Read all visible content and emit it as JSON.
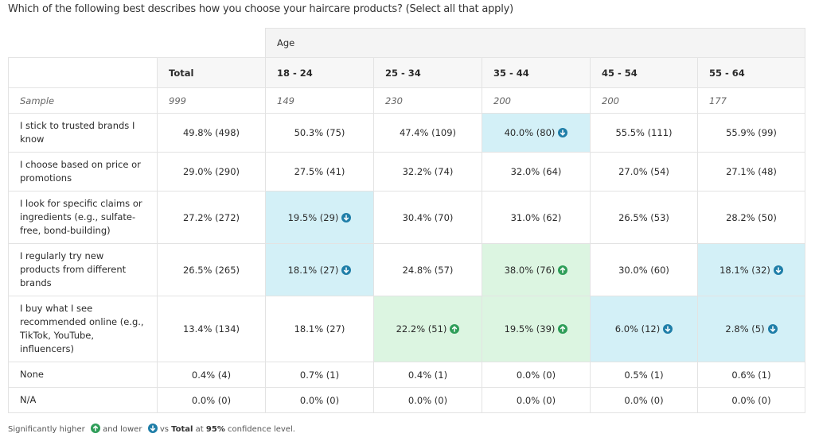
{
  "title": "Which of the following best describes how you choose your haircare products? (Select all that apply)",
  "table": {
    "group_header": "Age",
    "columns": [
      "Total",
      "18 - 24",
      "25 - 34",
      "35 - 44",
      "45 - 54",
      "55 - 64"
    ],
    "sample_label": "Sample",
    "sample": [
      999,
      149,
      230,
      200,
      200,
      177
    ],
    "rows": [
      {
        "label": "I stick to trusted brands I know",
        "cells": [
          {
            "text": "49.8% (498)"
          },
          {
            "text": "50.3% (75)"
          },
          {
            "text": "47.4% (109)"
          },
          {
            "text": "40.0% (80)",
            "sig": "down"
          },
          {
            "text": "55.5% (111)"
          },
          {
            "text": "55.9% (99)"
          }
        ]
      },
      {
        "label": "I choose based on price or promotions",
        "cells": [
          {
            "text": "29.0% (290)"
          },
          {
            "text": "27.5% (41)"
          },
          {
            "text": "32.2% (74)"
          },
          {
            "text": "32.0% (64)"
          },
          {
            "text": "27.0% (54)"
          },
          {
            "text": "27.1% (48)"
          }
        ]
      },
      {
        "label": "I look for specific claims or ingredients (e.g., sulfate-free, bond-building)",
        "cells": [
          {
            "text": "27.2% (272)"
          },
          {
            "text": "19.5% (29)",
            "sig": "down"
          },
          {
            "text": "30.4% (70)"
          },
          {
            "text": "31.0% (62)"
          },
          {
            "text": "26.5% (53)"
          },
          {
            "text": "28.2% (50)"
          }
        ]
      },
      {
        "label": "I regularly try new products from different brands",
        "cells": [
          {
            "text": "26.5% (265)"
          },
          {
            "text": "18.1% (27)",
            "sig": "down"
          },
          {
            "text": "24.8% (57)"
          },
          {
            "text": "38.0% (76)",
            "sig": "up"
          },
          {
            "text": "30.0% (60)"
          },
          {
            "text": "18.1% (32)",
            "sig": "down"
          }
        ]
      },
      {
        "label": "I buy what I see recommended online (e.g., TikTok, YouTube, influencers)",
        "cells": [
          {
            "text": "13.4% (134)"
          },
          {
            "text": "18.1% (27)"
          },
          {
            "text": "22.2% (51)",
            "sig": "up"
          },
          {
            "text": "19.5% (39)",
            "sig": "up"
          },
          {
            "text": "6.0% (12)",
            "sig": "down"
          },
          {
            "text": "2.8% (5)",
            "sig": "down"
          }
        ]
      },
      {
        "label": "None",
        "cells": [
          {
            "text": "0.4% (4)"
          },
          {
            "text": "0.7% (1)"
          },
          {
            "text": "0.4% (1)"
          },
          {
            "text": "0.0% (0)"
          },
          {
            "text": "0.5% (1)"
          },
          {
            "text": "0.6% (1)"
          }
        ]
      },
      {
        "label": "N/A",
        "cells": [
          {
            "text": "0.0% (0)"
          },
          {
            "text": "0.0% (0)"
          },
          {
            "text": "0.0% (0)"
          },
          {
            "text": "0.0% (0)"
          },
          {
            "text": "0.0% (0)"
          },
          {
            "text": "0.0% (0)"
          }
        ]
      }
    ]
  },
  "footer": [
    "Significantly higher",
    "and lower",
    "vs",
    "Total",
    "at",
    "95%",
    "confidence level."
  ]
}
